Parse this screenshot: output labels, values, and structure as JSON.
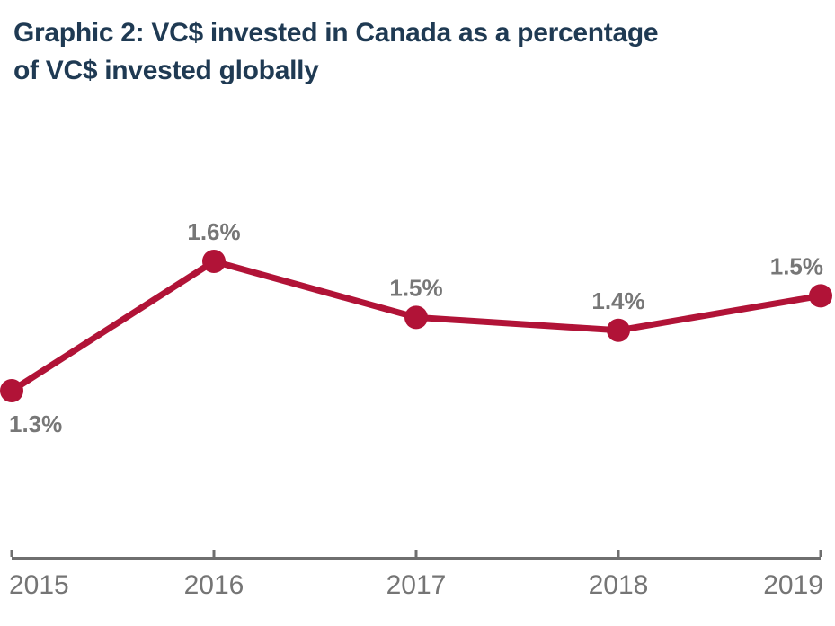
{
  "title": {
    "line1": "Graphic 2: VC$ invested in Canada as a percentage",
    "line2": "of VC$ invested globally"
  },
  "chart_data": {
    "type": "line",
    "title": "Graphic 2: VC$ invested in Canada as a percentage of VC$ invested globally",
    "x": [
      2015,
      2016,
      2017,
      2018,
      2019
    ],
    "values": [
      1.3,
      1.6,
      1.5,
      1.4,
      1.5
    ],
    "values_plotted_estimate": [
      1.3,
      1.6,
      1.47,
      1.44,
      1.52
    ],
    "point_labels": [
      "1.3%",
      "1.6%",
      "1.5%",
      "1.4%",
      "1.5%"
    ],
    "xlabel": "",
    "ylabel": "",
    "grid": false,
    "legend": false,
    "axis_range_note": "only x-axis drawn, no y-axis shown",
    "line_color": "#B11337",
    "marker_color": "#B11337",
    "point_label_color": "#777777",
    "year_label_color": "#757575",
    "axis_color": "#6F6F6F",
    "title_color": "#1F3A53"
  }
}
